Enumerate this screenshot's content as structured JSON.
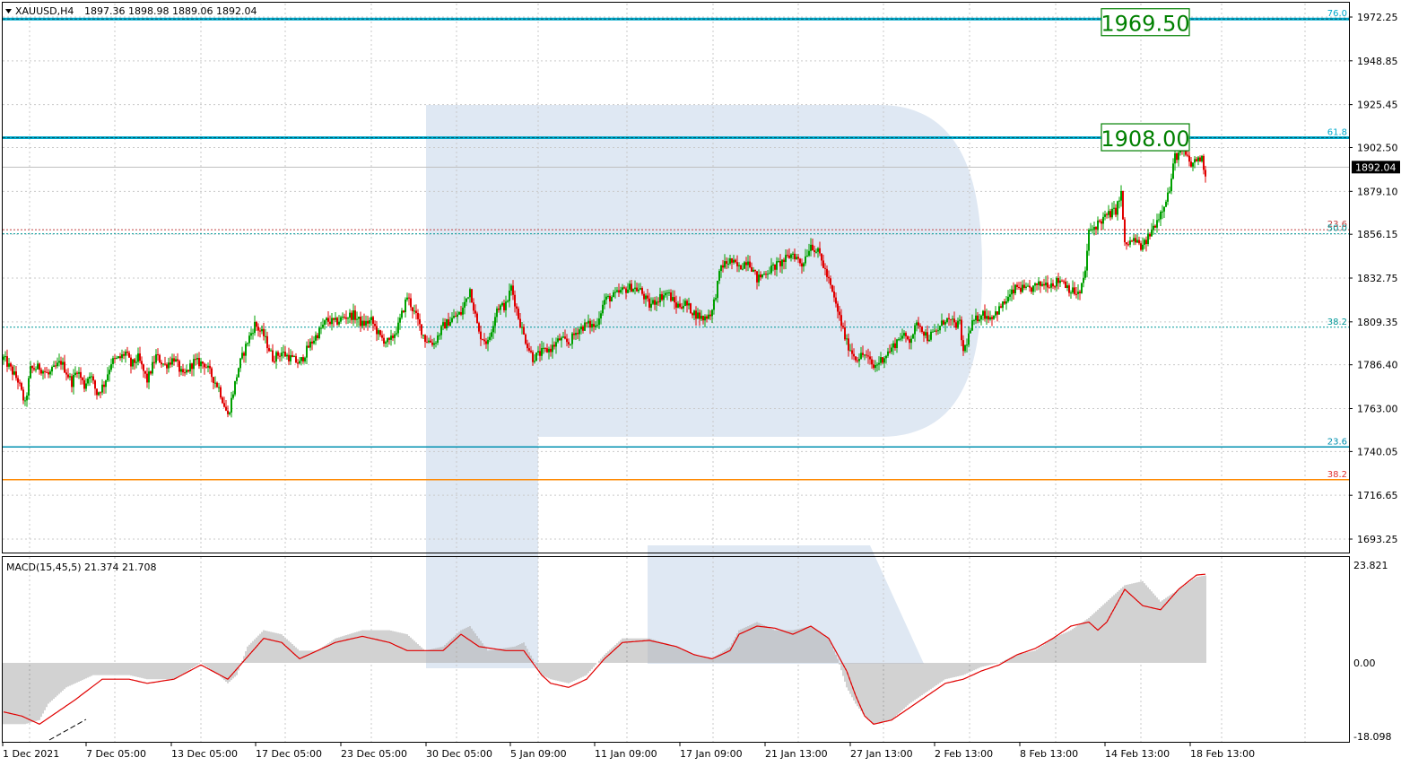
{
  "header": {
    "symbol": "XAUUSD,H4",
    "ohlc": "1897.36 1898.98 1889.06 1892.04"
  },
  "macd": {
    "label": "MACD(15,45,5) 21.374 21.708"
  },
  "colors": {
    "bull": "#00a000",
    "bear": "#e00000",
    "grid": "#c9c9c9",
    "fibo": "#009999",
    "fibo_red": "#c04040",
    "orange": "#ff8800",
    "highlight": "#00aacc",
    "macd_hist": "#b4b4b4",
    "macd_signal": "#e00000",
    "boxes": "#008000",
    "watermark": "#dfe8f3"
  },
  "chart_data": [
    {
      "type": "candlestick",
      "title": "XAUUSD,H4",
      "ylim": [
        1680.0,
        1985.0
      ],
      "y_ticks": [
        "1972.25",
        "1948.85",
        "1925.45",
        "1902.50",
        "1879.10",
        "1856.15",
        "1832.75",
        "1809.35",
        "1786.40",
        "1763.00",
        "1740.05",
        "1716.65",
        "1693.25"
      ],
      "x_ticks": [
        "1 Dec 2021",
        "7 Dec 05:00",
        "13 Dec 05:00",
        "17 Dec 05:00",
        "23 Dec 05:00",
        "30 Dec 05:00",
        "5 Jan 09:00",
        "11 Jan 09:00",
        "17 Jan 09:00",
        "21 Jan 13:00",
        "27 Jan 13:00",
        "2 Feb 13:00",
        "8 Feb 13:00",
        "14 Feb 13:00",
        "18 Feb 13:00"
      ],
      "current_price": "1892.04",
      "close_path": [
        [
          0,
          1790
        ],
        [
          8,
          1778
        ],
        [
          12,
          1765
        ],
        [
          15,
          1784
        ],
        [
          20,
          1785
        ],
        [
          25,
          1781
        ],
        [
          32,
          1788
        ],
        [
          38,
          1777
        ],
        [
          41,
          1784
        ],
        [
          45,
          1775
        ],
        [
          48,
          1782
        ],
        [
          52,
          1771
        ],
        [
          56,
          1776
        ],
        [
          60,
          1788
        ],
        [
          65,
          1790
        ],
        [
          68,
          1793
        ],
        [
          71,
          1786
        ],
        [
          75,
          1790
        ],
        [
          80,
          1778
        ],
        [
          85,
          1791
        ],
        [
          90,
          1786
        ],
        [
          95,
          1790
        ],
        [
          100,
          1780
        ],
        [
          106,
          1788
        ],
        [
          112,
          1787
        ],
        [
          120,
          1774
        ],
        [
          125,
          1759
        ],
        [
          128,
          1772
        ],
        [
          131,
          1785
        ],
        [
          136,
          1799
        ],
        [
          140,
          1808
        ],
        [
          145,
          1802
        ],
        [
          150,
          1790
        ],
        [
          155,
          1793
        ],
        [
          160,
          1790
        ],
        [
          165,
          1787
        ],
        [
          170,
          1796
        ],
        [
          175,
          1803
        ],
        [
          180,
          1810
        ],
        [
          185,
          1809
        ],
        [
          190,
          1812
        ],
        [
          195,
          1813
        ],
        [
          200,
          1808
        ],
        [
          205,
          1810
        ],
        [
          210,
          1801
        ],
        [
          215,
          1798
        ],
        [
          220,
          1807
        ],
        [
          225,
          1823
        ],
        [
          230,
          1812
        ],
        [
          235,
          1800
        ],
        [
          240,
          1798
        ],
        [
          245,
          1807
        ],
        [
          250,
          1811
        ],
        [
          255,
          1814
        ],
        [
          260,
          1827
        ],
        [
          265,
          1803
        ],
        [
          270,
          1798
        ],
        [
          275,
          1817
        ],
        [
          280,
          1818
        ],
        [
          283,
          1828
        ],
        [
          287,
          1812
        ],
        [
          290,
          1802
        ],
        [
          295,
          1790
        ],
        [
          300,
          1793
        ],
        [
          305,
          1795
        ],
        [
          310,
          1800
        ],
        [
          315,
          1798
        ],
        [
          320,
          1805
        ],
        [
          325,
          1808
        ],
        [
          330,
          1807
        ],
        [
          335,
          1821
        ],
        [
          340,
          1823
        ],
        [
          345,
          1826
        ],
        [
          350,
          1828
        ],
        [
          355,
          1826
        ],
        [
          360,
          1818
        ],
        [
          365,
          1822
        ],
        [
          370,
          1825
        ],
        [
          375,
          1818
        ],
        [
          380,
          1819
        ],
        [
          385,
          1814
        ],
        [
          390,
          1811
        ],
        [
          395,
          1815
        ],
        [
          400,
          1839
        ],
        [
          405,
          1842
        ],
        [
          410,
          1838
        ],
        [
          415,
          1843
        ],
        [
          420,
          1832
        ],
        [
          425,
          1836
        ],
        [
          430,
          1839
        ],
        [
          435,
          1842
        ],
        [
          440,
          1846
        ],
        [
          445,
          1840
        ],
        [
          450,
          1851
        ],
        [
          455,
          1845
        ],
        [
          460,
          1831
        ],
        [
          465,
          1815
        ],
        [
          470,
          1798
        ],
        [
          475,
          1790
        ],
        [
          480,
          1792
        ],
        [
          485,
          1785
        ],
        [
          490,
          1790
        ],
        [
          495,
          1795
        ],
        [
          500,
          1802
        ],
        [
          505,
          1800
        ],
        [
          510,
          1809
        ],
        [
          515,
          1801
        ],
        [
          520,
          1804
        ],
        [
          525,
          1811
        ],
        [
          530,
          1808
        ],
        [
          533,
          1808
        ],
        [
          535,
          1793
        ],
        [
          540,
          1808
        ],
        [
          545,
          1814
        ],
        [
          550,
          1812
        ],
        [
          555,
          1816
        ],
        [
          560,
          1822
        ],
        [
          565,
          1828
        ],
        [
          570,
          1826
        ],
        [
          575,
          1828
        ],
        [
          580,
          1830
        ],
        [
          585,
          1830
        ],
        [
          590,
          1832
        ],
        [
          595,
          1826
        ],
        [
          600,
          1824
        ],
        [
          603,
          1837
        ],
        [
          605,
          1857
        ],
        [
          610,
          1862
        ],
        [
          615,
          1866
        ],
        [
          620,
          1869
        ],
        [
          623,
          1878
        ],
        [
          625,
          1850
        ],
        [
          630,
          1853
        ],
        [
          635,
          1849
        ],
        [
          640,
          1858
        ],
        [
          645,
          1868
        ],
        [
          650,
          1880
        ],
        [
          653,
          1898
        ],
        [
          658,
          1900
        ],
        [
          662,
          1893
        ],
        [
          666,
          1897
        ],
        [
          668,
          1896
        ],
        [
          670,
          1889
        ]
      ],
      "fibo_levels": [
        {
          "label": "76.0",
          "value": 1971.2,
          "color": "#00aacc",
          "style": "thick"
        },
        {
          "label": "61.8",
          "value": 1907.8,
          "color": "#00aacc",
          "style": "thick"
        },
        {
          "label": "23.6",
          "value": 1858.6,
          "color": "#c04040",
          "style": "dotted"
        },
        {
          "label": "50.0",
          "value": 1856.4,
          "color": "#009999",
          "style": "dotted"
        },
        {
          "label": "38.2",
          "value": 1806.5,
          "color": "#009999",
          "style": "dotted"
        },
        {
          "label": "23.6",
          "value": 1742.5,
          "color": "#0090b0",
          "style": "solid"
        },
        {
          "label": "38.2",
          "value": 1725.0,
          "color": "#ff8800",
          "style": "solid"
        }
      ],
      "bid_line": 1892.04,
      "target_boxes": [
        {
          "label": "1969.50",
          "value": 1969.5
        },
        {
          "label": "1908.00",
          "value": 1908.0
        }
      ]
    },
    {
      "type": "macd",
      "title": "MACD(15,45,5) 21.374 21.708",
      "ylim": [
        -18.098,
        23.821
      ],
      "y_ticks": [
        "23.821",
        "0.00",
        "-18.098"
      ],
      "hist_path": [
        [
          0,
          -15
        ],
        [
          12,
          -15
        ],
        [
          20,
          -14
        ],
        [
          25,
          -10
        ],
        [
          35,
          -6
        ],
        [
          50,
          -3
        ],
        [
          70,
          -3
        ],
        [
          80,
          -4
        ],
        [
          95,
          -4
        ],
        [
          110,
          0
        ],
        [
          120,
          -3
        ],
        [
          125,
          -5
        ],
        [
          130,
          -3
        ],
        [
          136,
          4
        ],
        [
          145,
          8
        ],
        [
          155,
          7
        ],
        [
          165,
          3
        ],
        [
          175,
          3
        ],
        [
          185,
          6
        ],
        [
          200,
          8
        ],
        [
          215,
          8
        ],
        [
          225,
          7
        ],
        [
          235,
          3
        ],
        [
          245,
          4
        ],
        [
          255,
          8
        ],
        [
          260,
          9
        ],
        [
          270,
          3
        ],
        [
          285,
          4
        ],
        [
          290,
          5
        ],
        [
          295,
          1
        ],
        [
          300,
          -3
        ],
        [
          305,
          -4
        ],
        [
          315,
          -5
        ],
        [
          325,
          -3
        ],
        [
          335,
          2
        ],
        [
          345,
          6
        ],
        [
          360,
          6
        ],
        [
          375,
          4
        ],
        [
          385,
          2
        ],
        [
          395,
          1
        ],
        [
          405,
          4
        ],
        [
          410,
          8
        ],
        [
          420,
          10
        ],
        [
          430,
          8
        ],
        [
          440,
          8
        ],
        [
          450,
          9
        ],
        [
          460,
          6
        ],
        [
          465,
          1
        ],
        [
          470,
          -6
        ],
        [
          475,
          -10
        ],
        [
          480,
          -13
        ],
        [
          485,
          -15
        ],
        [
          495,
          -14
        ],
        [
          505,
          -10
        ],
        [
          515,
          -7
        ],
        [
          525,
          -4
        ],
        [
          535,
          -3
        ],
        [
          545,
          -1
        ],
        [
          555,
          0
        ],
        [
          565,
          2
        ],
        [
          575,
          3
        ],
        [
          585,
          6
        ],
        [
          595,
          8
        ],
        [
          605,
          11
        ],
        [
          615,
          15
        ],
        [
          625,
          19
        ],
        [
          635,
          20
        ],
        [
          645,
          15
        ],
        [
          655,
          18
        ],
        [
          665,
          21
        ],
        [
          670,
          21.4
        ]
      ],
      "signal_path": [
        [
          0,
          -12
        ],
        [
          10,
          -13
        ],
        [
          20,
          -15
        ],
        [
          30,
          -12
        ],
        [
          40,
          -9
        ],
        [
          55,
          -4
        ],
        [
          70,
          -4
        ],
        [
          80,
          -5
        ],
        [
          95,
          -4
        ],
        [
          110,
          -0.5
        ],
        [
          125,
          -4
        ],
        [
          135,
          1
        ],
        [
          145,
          6
        ],
        [
          155,
          5
        ],
        [
          165,
          1
        ],
        [
          175,
          3
        ],
        [
          185,
          5
        ],
        [
          200,
          6.5
        ],
        [
          215,
          5
        ],
        [
          225,
          3
        ],
        [
          235,
          3
        ],
        [
          245,
          3
        ],
        [
          255,
          7
        ],
        [
          265,
          4
        ],
        [
          280,
          3
        ],
        [
          290,
          3
        ],
        [
          300,
          -3
        ],
        [
          305,
          -5
        ],
        [
          315,
          -6
        ],
        [
          325,
          -4
        ],
        [
          335,
          1
        ],
        [
          345,
          5
        ],
        [
          360,
          5.5
        ],
        [
          375,
          4
        ],
        [
          385,
          2
        ],
        [
          395,
          1
        ],
        [
          405,
          3
        ],
        [
          410,
          7
        ],
        [
          420,
          9
        ],
        [
          430,
          8.5
        ],
        [
          440,
          7
        ],
        [
          450,
          9
        ],
        [
          460,
          6
        ],
        [
          465,
          2
        ],
        [
          470,
          -2
        ],
        [
          475,
          -8
        ],
        [
          480,
          -13
        ],
        [
          485,
          -15
        ],
        [
          495,
          -14
        ],
        [
          505,
          -11
        ],
        [
          515,
          -8
        ],
        [
          525,
          -5
        ],
        [
          535,
          -4
        ],
        [
          545,
          -2
        ],
        [
          555,
          -0.5
        ],
        [
          565,
          2
        ],
        [
          575,
          3.5
        ],
        [
          585,
          6
        ],
        [
          595,
          9
        ],
        [
          605,
          10
        ],
        [
          610,
          8
        ],
        [
          615,
          10
        ],
        [
          625,
          18
        ],
        [
          635,
          14
        ],
        [
          645,
          13
        ],
        [
          655,
          18
        ],
        [
          665,
          21.5
        ],
        [
          670,
          21.7
        ]
      ]
    }
  ]
}
